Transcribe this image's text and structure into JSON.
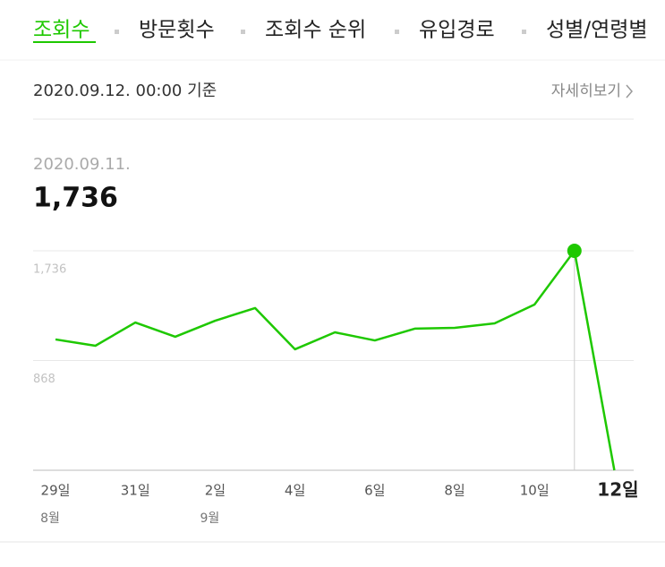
{
  "tabs": [
    "조회수",
    "방문횟수",
    "조회수 순위",
    "유입경로",
    "성별/연령별"
  ],
  "header": {
    "basis": "2020.09.12. 00:00 기준",
    "more": "자세히보기"
  },
  "summary": {
    "date": "2020.09.11.",
    "value": "1,736"
  },
  "chart_data": {
    "type": "line",
    "color": "#1ec800",
    "categories": [
      "29일",
      null,
      "31일",
      null,
      "2일",
      null,
      "4일",
      null,
      "6일",
      null,
      "8일",
      null,
      "10일",
      null,
      "12일"
    ],
    "month_labels": [
      "8월",
      null,
      null,
      null,
      "9월",
      null,
      null,
      null,
      null,
      null,
      null,
      null,
      null,
      null,
      null
    ],
    "values": [
      1035,
      985,
      1169,
      1056,
      1183,
      1283,
      957,
      1091,
      1027,
      1120,
      1127,
      1162,
      1311,
      1736,
      0
    ],
    "highlight": 13,
    "ylim": [
      0,
      1736
    ],
    "yticks": [
      {
        "value": 868,
        "label": "868"
      },
      {
        "value": 1736,
        "label": "1,736"
      }
    ],
    "grid": true
  }
}
